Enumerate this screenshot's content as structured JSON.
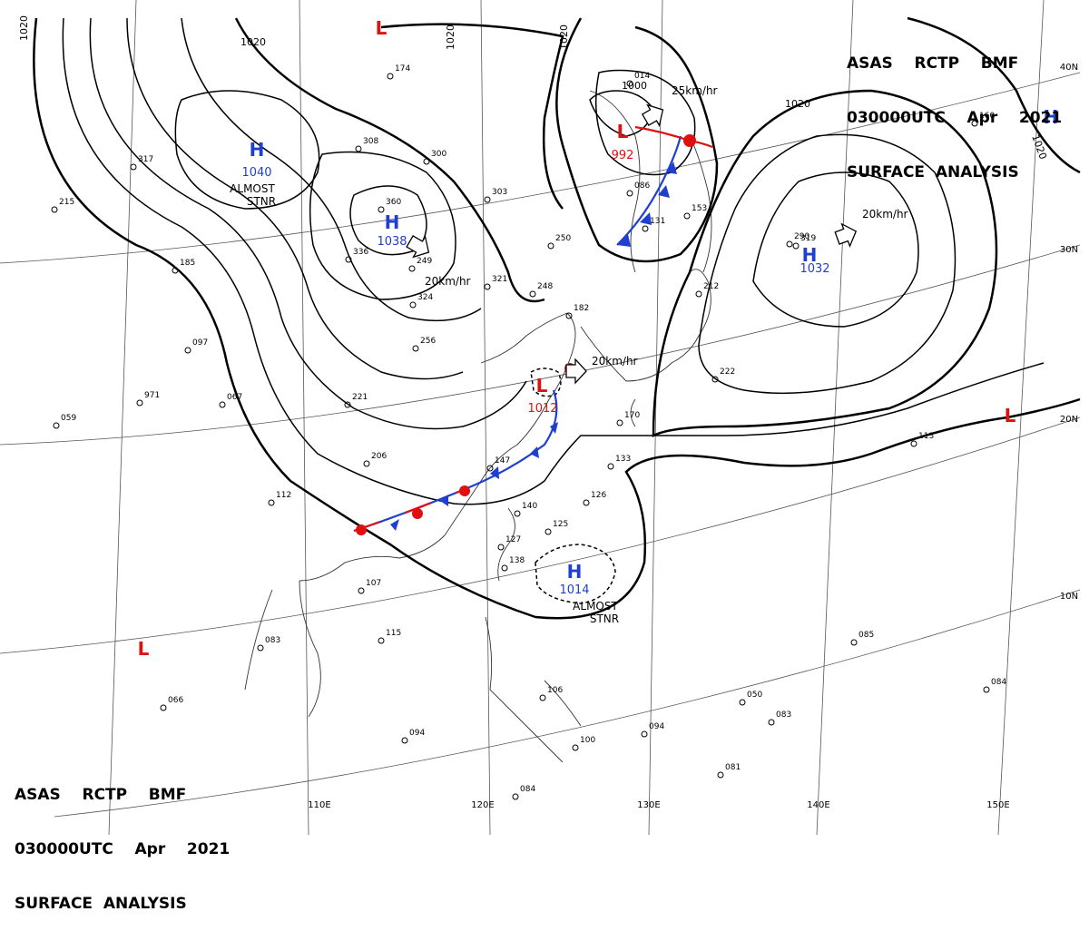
{
  "header": {
    "line1": "ASAS    RCTP    BMF",
    "line2": "030000UTC    Apr    2021",
    "line3": "SURFACE  ANALYSIS"
  },
  "latitude_labels": [
    "40N",
    "30N",
    "20N",
    "10N"
  ],
  "longitude_labels": [
    "110E",
    "120E",
    "130E",
    "140E",
    "150E"
  ],
  "isobar_labels": [
    "1020",
    "1020",
    "1020",
    "1020",
    "1020",
    "1020",
    "1000"
  ],
  "pressure_centers": [
    {
      "type": "H",
      "value": "1040",
      "note": "ALMOST STNR",
      "color": "#1f3fd1"
    },
    {
      "type": "H",
      "value": "1038",
      "note": "",
      "color": "#1f3fd1"
    },
    {
      "type": "H",
      "value": "1032",
      "note": "",
      "color": "#1f3fd1"
    },
    {
      "type": "H",
      "value": "1014",
      "note": "ALMOST STNR",
      "color": "#1f3fd1"
    },
    {
      "type": "H",
      "value": "",
      "note": "",
      "color": "#1f3fd1"
    },
    {
      "type": "L",
      "value": "992",
      "note": "",
      "color": "#e01010"
    },
    {
      "type": "L",
      "value": "1012",
      "note": "",
      "color": "#e01010"
    },
    {
      "type": "L",
      "value": "",
      "note": "",
      "color": "#e01010"
    },
    {
      "type": "L",
      "value": "",
      "note": "",
      "color": "#e01010"
    },
    {
      "type": "L",
      "value": "",
      "note": "",
      "color": "#e01010"
    }
  ],
  "motion_labels": [
    "25km/hr",
    "20km/hr",
    "20km/hr",
    "20km/hr"
  ],
  "station_values": [
    "174",
    "360",
    "336",
    "249",
    "324",
    "256",
    "221",
    "206",
    "097",
    "971",
    "067",
    "059",
    "112",
    "147",
    "140",
    "126",
    "125",
    "127",
    "138",
    "115",
    "107",
    "083",
    "066",
    "094",
    "094",
    "084",
    "106",
    "100",
    "085",
    "050",
    "083",
    "081",
    "084",
    "222",
    "113",
    "133",
    "170",
    "153",
    "250",
    "248",
    "182",
    "321",
    "303",
    "300",
    "014",
    "086",
    "131",
    "160",
    "290",
    "319",
    "212",
    "185",
    "215",
    "317",
    "308"
  ],
  "colors": {
    "isobar": "#000000",
    "high": "#1f3fd1",
    "low": "#e01010",
    "cold_front": "#1f3fd1",
    "warm_front": "#e01010"
  }
}
